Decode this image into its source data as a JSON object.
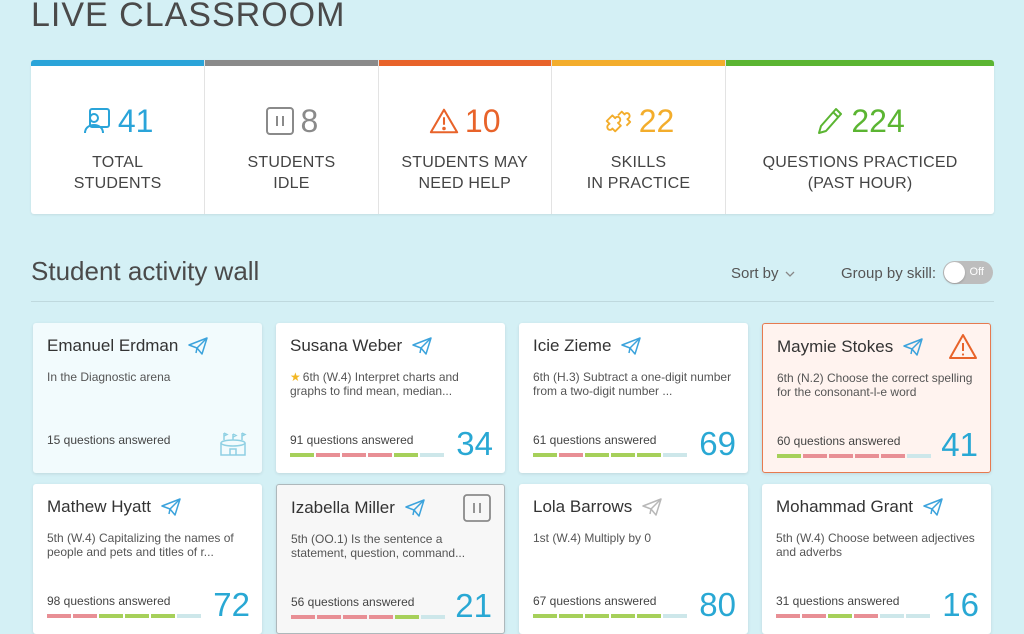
{
  "page": {
    "title": "LIVE CLASSROOM"
  },
  "stats": [
    {
      "value": "41",
      "label": "TOTAL\nSTUDENTS",
      "color": "#2aa4d9",
      "icon": "student-icon"
    },
    {
      "value": "8",
      "label": "STUDENTS\nIDLE",
      "color": "#8a8a8a",
      "icon": "pause-icon"
    },
    {
      "value": "10",
      "label": "STUDENTS MAY\nNEED HELP",
      "color": "#e8632a",
      "icon": "warning-icon"
    },
    {
      "value": "22",
      "label": "SKILLS\nIN PRACTICE",
      "color": "#f3ad2c",
      "icon": "puzzle-icon"
    },
    {
      "value": "224",
      "label": "QUESTIONS PRACTICED\n(PAST HOUR)",
      "color": "#5bb532",
      "icon": "pencil-icon"
    }
  ],
  "wall": {
    "title": "Student activity wall",
    "sort_label": "Sort by",
    "group_label": "Group by skill:",
    "toggle_state": "Off"
  },
  "students": [
    {
      "name": "Emanuel Erdman",
      "desc": "In the Diagnostic arena",
      "answered": "15 questions answered",
      "score": "",
      "status": "diagnostic",
      "segments": []
    },
    {
      "name": "Susana Weber",
      "desc": "6th (W.4) Interpret charts and graphs  to find mean, median...",
      "answered": "91 questions answered",
      "score": "34",
      "status": "active",
      "starred": true,
      "segments": [
        "g",
        "r",
        "r",
        "r",
        "g",
        "e"
      ]
    },
    {
      "name": "Icie Zieme",
      "desc": "6th (H.3) Subtract a one-digit number from a two-digit number ...",
      "answered": "61 questions answered",
      "score": "69",
      "status": "active",
      "segments": [
        "g",
        "r",
        "g",
        "g",
        "g",
        "e"
      ]
    },
    {
      "name": "Maymie Stokes",
      "desc": "6th (N.2) Choose the correct spelling for the consonant-l-e word",
      "answered": "60 questions answered",
      "score": "41",
      "status": "warning",
      "segments": [
        "g",
        "r",
        "r",
        "r",
        "r",
        "e"
      ]
    },
    {
      "name": "Mathew Hyatt",
      "desc": "5th (W.4) Capitalizing the names of people and pets and titles of r...",
      "answered": "98 questions answered",
      "score": "72",
      "status": "active",
      "segments": [
        "r",
        "r",
        "g",
        "g",
        "g",
        "e"
      ]
    },
    {
      "name": "Izabella Miller",
      "desc": "5th (OO.1) Is the sentence a statement, question, command...",
      "answered": "56 questions answered",
      "score": "21",
      "status": "idle",
      "segments": [
        "r",
        "r",
        "r",
        "r",
        "g",
        "e"
      ]
    },
    {
      "name": "Lola Barrows",
      "desc": "1st (W.4) Multiply by 0",
      "answered": "67 questions answered",
      "score": "80",
      "status": "inactive",
      "segments": [
        "g",
        "g",
        "g",
        "g",
        "g",
        "e"
      ]
    },
    {
      "name": "Mohammad Grant",
      "desc": "5th (W.4) Choose between adjectives and adverbs",
      "answered": "31 questions answered",
      "score": "16",
      "status": "active",
      "segments": [
        "r",
        "r",
        "g",
        "r",
        "e",
        "e"
      ]
    }
  ],
  "colors": {
    "accent": "#29a8d4",
    "plane": "#3ca3dc",
    "plane_inactive": "#b8b8b8",
    "warning": "#e8632a"
  }
}
